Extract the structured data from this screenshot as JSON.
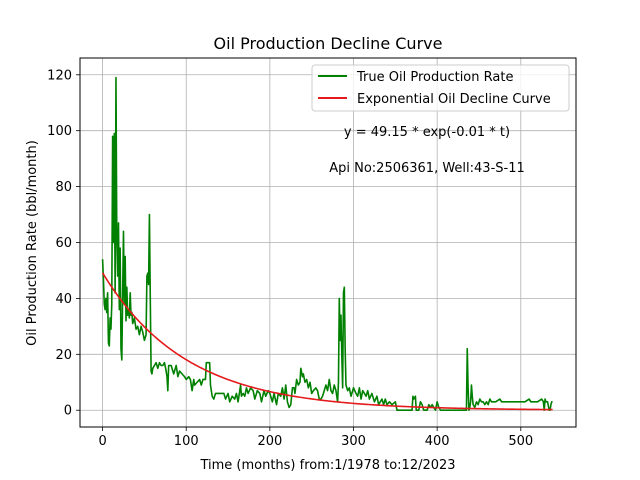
{
  "chart_data": {
    "type": "line",
    "title": "Oil Production Decline Curve",
    "xlabel": "Time (months) from:1/1978 to:12/2023",
    "ylabel": "Oil Production Rate (bbl/month)",
    "xlim": [
      -27,
      566
    ],
    "ylim": [
      -6,
      126
    ],
    "xticks": [
      0,
      100,
      200,
      300,
      400,
      500
    ],
    "yticks": [
      0,
      20,
      40,
      60,
      80,
      100,
      120
    ],
    "grid": true,
    "legend_position": "top-right",
    "annotations": [
      "y = 49.15 * exp(-0.01 * t)",
      "Api No:2506361, Well:43-S-11"
    ],
    "series": [
      {
        "name": "True Oil Production Rate",
        "color": "#008000",
        "points": [
          [
            0,
            54
          ],
          [
            1,
            47
          ],
          [
            2,
            38
          ],
          [
            3,
            36
          ],
          [
            4,
            40
          ],
          [
            5,
            35
          ],
          [
            6,
            42
          ],
          [
            7,
            24
          ],
          [
            8,
            23
          ],
          [
            9,
            33
          ],
          [
            10,
            29
          ],
          [
            11,
            38
          ],
          [
            12,
            98
          ],
          [
            13,
            60
          ],
          [
            14,
            99
          ],
          [
            15,
            42
          ],
          [
            16,
            119
          ],
          [
            17,
            62
          ],
          [
            18,
            48
          ],
          [
            19,
            67
          ],
          [
            20,
            36
          ],
          [
            21,
            58
          ],
          [
            22,
            22
          ],
          [
            23,
            18
          ],
          [
            24,
            42
          ],
          [
            25,
            64
          ],
          [
            26,
            38
          ],
          [
            27,
            55
          ],
          [
            28,
            32
          ],
          [
            29,
            44
          ],
          [
            30,
            34
          ],
          [
            31,
            36
          ],
          [
            32,
            33
          ],
          [
            33,
            42
          ],
          [
            34,
            34
          ],
          [
            35,
            35
          ],
          [
            36,
            31
          ],
          [
            38,
            33
          ],
          [
            40,
            29
          ],
          [
            42,
            30
          ],
          [
            44,
            27
          ],
          [
            46,
            30
          ],
          [
            48,
            28
          ],
          [
            50,
            25
          ],
          [
            52,
            27
          ],
          [
            53,
            48
          ],
          [
            54,
            49
          ],
          [
            55,
            45
          ],
          [
            56,
            70
          ],
          [
            57,
            41
          ],
          [
            58,
            14
          ],
          [
            59,
            13
          ],
          [
            60,
            15
          ],
          [
            62,
            16
          ],
          [
            64,
            17
          ],
          [
            66,
            15
          ],
          [
            68,
            17
          ],
          [
            70,
            16
          ],
          [
            72,
            16
          ],
          [
            74,
            17
          ],
          [
            76,
            14
          ],
          [
            77,
            12
          ],
          [
            78,
            7
          ],
          [
            79,
            16
          ],
          [
            82,
            16
          ],
          [
            85,
            13
          ],
          [
            88,
            16
          ],
          [
            90,
            12
          ],
          [
            92,
            14
          ],
          [
            95,
            13
          ],
          [
            98,
            12
          ],
          [
            100,
            11
          ],
          [
            103,
            12
          ],
          [
            105,
            11
          ],
          [
            107,
            7
          ],
          [
            109,
            11
          ],
          [
            110,
            9
          ],
          [
            113,
            10
          ],
          [
            116,
            11
          ],
          [
            118,
            9
          ],
          [
            120,
            11
          ],
          [
            123,
            11
          ],
          [
            124,
            17
          ],
          [
            128,
            17
          ],
          [
            129,
            9
          ],
          [
            131,
            5
          ],
          [
            133,
            4
          ],
          [
            135,
            6
          ],
          [
            140,
            6
          ],
          [
            145,
            6
          ],
          [
            147,
            4
          ],
          [
            150,
            6
          ],
          [
            152,
            3
          ],
          [
            155,
            5
          ],
          [
            158,
            4
          ],
          [
            160,
            6
          ],
          [
            162,
            3
          ],
          [
            163,
            5
          ],
          [
            165,
            9
          ],
          [
            166,
            5
          ],
          [
            168,
            6
          ],
          [
            170,
            5
          ],
          [
            172,
            8
          ],
          [
            174,
            6
          ],
          [
            177,
            8
          ],
          [
            180,
            7
          ],
          [
            182,
            4
          ],
          [
            185,
            7
          ],
          [
            188,
            6
          ],
          [
            190,
            3
          ],
          [
            193,
            7
          ],
          [
            195,
            5
          ],
          [
            198,
            7
          ],
          [
            200,
            6
          ],
          [
            203,
            3
          ],
          [
            205,
            6
          ],
          [
            208,
            2
          ],
          [
            210,
            6
          ],
          [
            213,
            5
          ],
          [
            215,
            8
          ],
          [
            217,
            4
          ],
          [
            219,
            9
          ],
          [
            221,
            3
          ],
          [
            223,
            1
          ],
          [
            225,
            2
          ],
          [
            227,
            8
          ],
          [
            229,
            8
          ],
          [
            230,
            6
          ],
          [
            232,
            11
          ],
          [
            234,
            9
          ],
          [
            236,
            10
          ],
          [
            237,
            15
          ],
          [
            239,
            12
          ],
          [
            240,
            13
          ],
          [
            242,
            10
          ],
          [
            244,
            11
          ],
          [
            246,
            8
          ],
          [
            248,
            10
          ],
          [
            250,
            6
          ],
          [
            252,
            7
          ],
          [
            255,
            8
          ],
          [
            257,
            7
          ],
          [
            259,
            4
          ],
          [
            261,
            4
          ],
          [
            263,
            5
          ],
          [
            265,
            7
          ],
          [
            267,
            9
          ],
          [
            269,
            7
          ],
          [
            271,
            11
          ],
          [
            273,
            7
          ],
          [
            275,
            6
          ],
          [
            277,
            9
          ],
          [
            279,
            7
          ],
          [
            281,
            3
          ],
          [
            282,
            10
          ],
          [
            283,
            40
          ],
          [
            284,
            25
          ],
          [
            285,
            34
          ],
          [
            286,
            20
          ],
          [
            287,
            8
          ],
          [
            288,
            42
          ],
          [
            289,
            44
          ],
          [
            290,
            22
          ],
          [
            291,
            9
          ],
          [
            293,
            7
          ],
          [
            295,
            8
          ],
          [
            297,
            5
          ],
          [
            300,
            8
          ],
          [
            303,
            6
          ],
          [
            305,
            5
          ],
          [
            307,
            8
          ],
          [
            309,
            4
          ],
          [
            311,
            7
          ],
          [
            313,
            6
          ],
          [
            315,
            5
          ],
          [
            317,
            7
          ],
          [
            319,
            4
          ],
          [
            322,
            6
          ],
          [
            325,
            3
          ],
          [
            328,
            5
          ],
          [
            330,
            2
          ],
          [
            332,
            3
          ],
          [
            334,
            4
          ],
          [
            336,
            2
          ],
          [
            338,
            4
          ],
          [
            340,
            2
          ],
          [
            343,
            3
          ],
          [
            346,
            2
          ],
          [
            350,
            3
          ],
          [
            352,
            0
          ],
          [
            360,
            0
          ],
          [
            370,
            0
          ],
          [
            371,
            5
          ],
          [
            372,
            4
          ],
          [
            374,
            5
          ],
          [
            375,
            0
          ],
          [
            378,
            0
          ],
          [
            380,
            3
          ],
          [
            382,
            2
          ],
          [
            384,
            0
          ],
          [
            388,
            0
          ],
          [
            390,
            2
          ],
          [
            392,
            1
          ],
          [
            394,
            2
          ],
          [
            396,
            1
          ],
          [
            398,
            0
          ],
          [
            400,
            3
          ],
          [
            402,
            1
          ],
          [
            404,
            0
          ],
          [
            420,
            0
          ],
          [
            435,
            0
          ],
          [
            436,
            22
          ],
          [
            437,
            8
          ],
          [
            438,
            0
          ],
          [
            439,
            1
          ],
          [
            440,
            3
          ],
          [
            441,
            9
          ],
          [
            442,
            5
          ],
          [
            443,
            2
          ],
          [
            445,
            1
          ],
          [
            447,
            3
          ],
          [
            449,
            2
          ],
          [
            451,
            4
          ],
          [
            453,
            3
          ],
          [
            455,
            3
          ],
          [
            457,
            2
          ],
          [
            459,
            3
          ],
          [
            461,
            2
          ],
          [
            463,
            4
          ],
          [
            465,
            3
          ],
          [
            470,
            3
          ],
          [
            475,
            4
          ],
          [
            477,
            3
          ],
          [
            480,
            3
          ],
          [
            485,
            3
          ],
          [
            490,
            3
          ],
          [
            495,
            3
          ],
          [
            500,
            3
          ],
          [
            505,
            3
          ],
          [
            510,
            4
          ],
          [
            512,
            3
          ],
          [
            515,
            3
          ],
          [
            520,
            3
          ],
          [
            525,
            4
          ],
          [
            527,
            3
          ],
          [
            528,
            0
          ],
          [
            529,
            4
          ],
          [
            530,
            3
          ],
          [
            532,
            3
          ],
          [
            534,
            0
          ],
          [
            535,
            0
          ],
          [
            536,
            2
          ],
          [
            537,
            3
          ],
          [
            538,
            3
          ]
        ]
      },
      {
        "name": "Exponential Oil Decline Curve",
        "color": "#e41a1c",
        "function": "exponential",
        "a": 49.15,
        "b": 0.01,
        "x_range": [
          0,
          538
        ]
      }
    ]
  }
}
